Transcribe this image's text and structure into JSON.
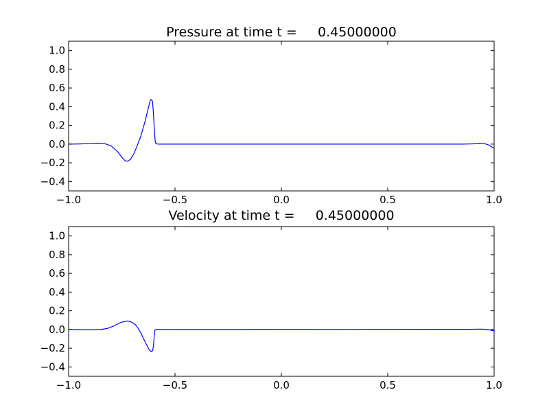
{
  "chart_data": [
    {
      "type": "line",
      "title": "Pressure at time t =     0.45000000",
      "xlabel": "",
      "ylabel": "",
      "xlim": [
        -1.0,
        1.0
      ],
      "ylim": [
        -0.5,
        1.1
      ],
      "xticks": [
        -1.0,
        -0.5,
        0.0,
        0.5,
        1.0
      ],
      "xtick_labels": [
        "−1.0",
        "−0.5",
        "0.0",
        "0.5",
        "1.0"
      ],
      "yticks": [
        -0.4,
        -0.2,
        0.0,
        0.2,
        0.4,
        0.6,
        0.8,
        1.0
      ],
      "ytick_labels": [
        "−0.4",
        "−0.2",
        "0.0",
        "0.2",
        "0.4",
        "0.6",
        "0.8",
        "1.0"
      ],
      "grid": false,
      "series": [
        {
          "name": "pressure",
          "color": "#0000ff",
          "points": [
            [
              -1,
              0
            ],
            [
              -0.95,
              0.002
            ],
            [
              -0.9,
              0.006
            ],
            [
              -0.86,
              0.01
            ],
            [
              -0.83,
              0.005
            ],
            [
              -0.8,
              -0.02
            ],
            [
              -0.77,
              -0.08
            ],
            [
              -0.75,
              -0.14
            ],
            [
              -0.735,
              -0.178
            ],
            [
              -0.725,
              -0.183
            ],
            [
              -0.71,
              -0.165
            ],
            [
              -0.695,
              -0.11
            ],
            [
              -0.68,
              -0.03
            ],
            [
              -0.66,
              0.09
            ],
            [
              -0.64,
              0.25
            ],
            [
              -0.625,
              0.39
            ],
            [
              -0.617,
              0.46
            ],
            [
              -0.612,
              0.477
            ],
            [
              -0.606,
              0.46
            ],
            [
              -0.602,
              0.35
            ],
            [
              -0.597,
              0.15
            ],
            [
              -0.593,
              0.03
            ],
            [
              -0.59,
              0.005
            ],
            [
              -0.58,
              0
            ],
            [
              0.85,
              0
            ],
            [
              0.9,
              0.003
            ],
            [
              0.93,
              0.01
            ],
            [
              0.955,
              0.005
            ],
            [
              0.975,
              -0.01
            ],
            [
              1,
              -0.045
            ]
          ]
        }
      ]
    },
    {
      "type": "line",
      "title": "Velocity at time t =     0.45000000",
      "xlabel": "",
      "ylabel": "",
      "xlim": [
        -1.0,
        1.0
      ],
      "ylim": [
        -0.5,
        1.1
      ],
      "xticks": [
        -1.0,
        -0.5,
        0.0,
        0.5,
        1.0
      ],
      "xtick_labels": [
        "−1.0",
        "−0.5",
        "0.0",
        "0.5",
        "1.0"
      ],
      "yticks": [
        -0.4,
        -0.2,
        0.0,
        0.2,
        0.4,
        0.6,
        0.8,
        1.0
      ],
      "ytick_labels": [
        "−0.4",
        "−0.2",
        "0.0",
        "0.2",
        "0.4",
        "0.6",
        "0.8",
        "1.0"
      ],
      "grid": false,
      "series": [
        {
          "name": "velocity",
          "color": "#0000ff",
          "points": [
            [
              -1,
              0
            ],
            [
              -0.9,
              -0.002
            ],
            [
              -0.85,
              0
            ],
            [
              -0.82,
              0.01
            ],
            [
              -0.79,
              0.035
            ],
            [
              -0.76,
              0.07
            ],
            [
              -0.74,
              0.085
            ],
            [
              -0.725,
              0.09
            ],
            [
              -0.71,
              0.085
            ],
            [
              -0.69,
              0.06
            ],
            [
              -0.675,
              0.02
            ],
            [
              -0.66,
              -0.04
            ],
            [
              -0.645,
              -0.11
            ],
            [
              -0.63,
              -0.18
            ],
            [
              -0.62,
              -0.22
            ],
            [
              -0.612,
              -0.237
            ],
            [
              -0.605,
              -0.225
            ],
            [
              -0.601,
              -0.17
            ],
            [
              -0.598,
              -0.08
            ],
            [
              -0.595,
              -0.01
            ],
            [
              -0.59,
              0
            ],
            [
              0.88,
              0.002
            ],
            [
              0.94,
              0.004
            ],
            [
              0.97,
              0
            ],
            [
              1,
              -0.015
            ]
          ]
        }
      ]
    }
  ]
}
